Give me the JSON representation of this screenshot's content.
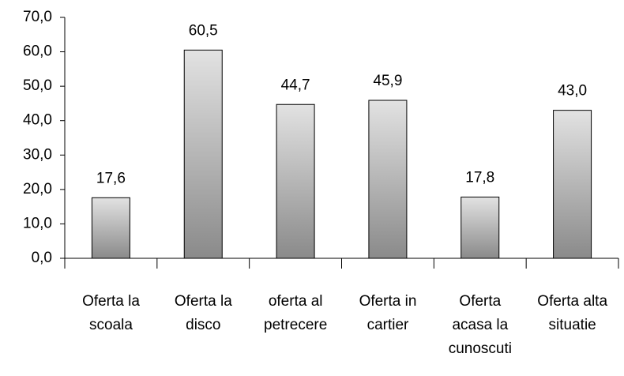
{
  "chart_data": {
    "type": "bar",
    "categories": [
      "Oferta la\nscoala",
      "Oferta la\ndisco",
      "oferta al\npetrecere",
      "Oferta in\ncartier",
      "Oferta\nacasa la\ncunoscuti",
      "Oferta alta\nsituatie"
    ],
    "values": [
      17.6,
      60.5,
      44.7,
      45.9,
      17.8,
      43.0
    ],
    "value_labels": [
      "17,6",
      "60,5",
      "44,7",
      "45,9",
      "17,8",
      "43,0"
    ],
    "ylim": [
      0,
      70
    ],
    "yticks": [
      {
        "value": 0,
        "label": "0,0"
      },
      {
        "value": 10,
        "label": "10,0"
      },
      {
        "value": 20,
        "label": "20,0"
      },
      {
        "value": 30,
        "label": "30,0"
      },
      {
        "value": 40,
        "label": "40,0"
      },
      {
        "value": 50,
        "label": "50,0"
      },
      {
        "value": 60,
        "label": "60,0"
      },
      {
        "value": 70,
        "label": "70,0"
      }
    ]
  }
}
